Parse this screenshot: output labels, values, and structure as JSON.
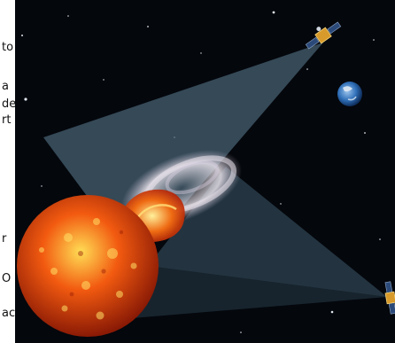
{
  "left_text_fragments": [
    "to",
    "a",
    "de",
    "rt",
    "r",
    "O",
    "ac"
  ],
  "illustration": {
    "subject": "space scene",
    "colors": {
      "space": "#04070c",
      "sun_core": "#ffdd55",
      "sun_mid": "#f25a10",
      "sun_edge": "#8a1a05",
      "prominence_glow": "#e8e2ea",
      "beam": "#5e7f95",
      "earth_ocean": "#2f6fb8",
      "earth_cloud": "#dfe9f3",
      "satellite_gold": "#d89a2a",
      "satellite_panel": "#2b4a7a"
    }
  }
}
